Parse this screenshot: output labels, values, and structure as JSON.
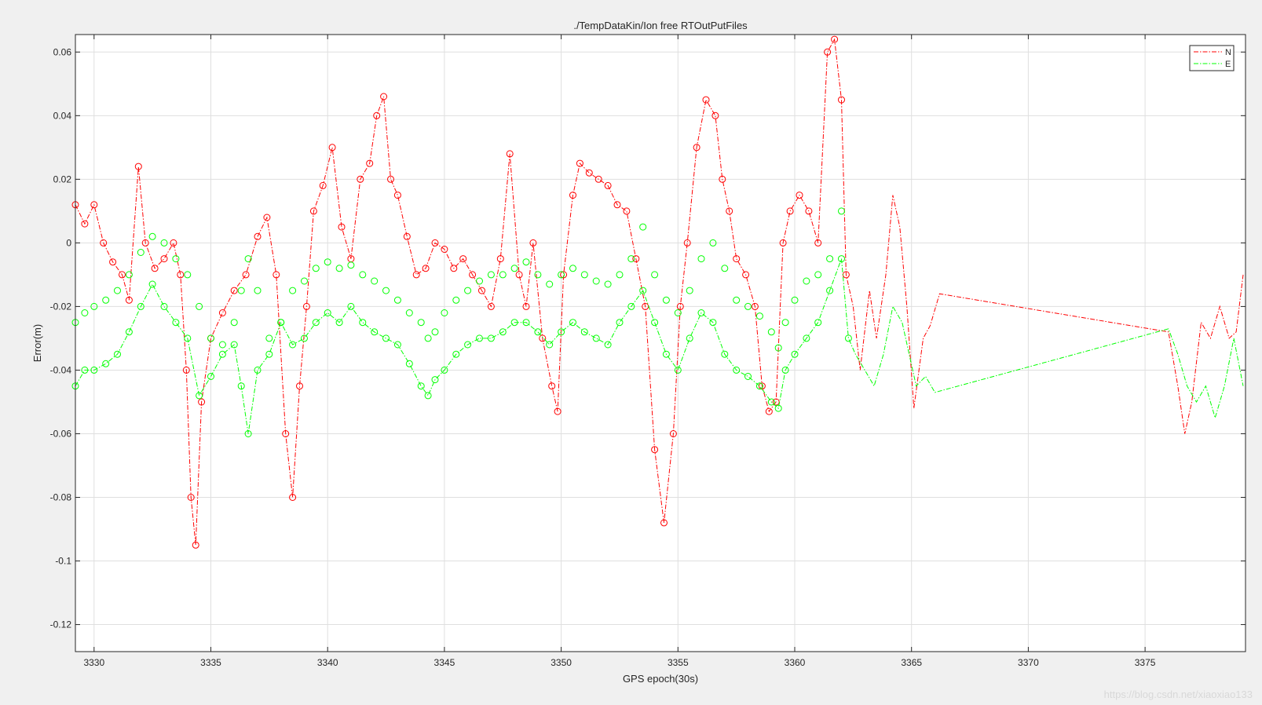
{
  "watermark": "https://blog.csdn.net/xiaoxiao133",
  "chart_data": {
    "type": "line",
    "title": "./TempDataKin/Ion free RTOutPutFiles",
    "xlabel": "GPS epoch(30s)",
    "ylabel": "Error(m)",
    "xlim": [
      3329.2,
      3379.3
    ],
    "ylim": [
      -0.1285,
      0.0655
    ],
    "xticks": [
      3330,
      3335,
      3340,
      3345,
      3350,
      3355,
      3360,
      3365,
      3370,
      3375
    ],
    "yticks": [
      0.06,
      0.04,
      0.02,
      0,
      -0.02,
      -0.04,
      -0.06,
      -0.08,
      -0.1,
      -0.12
    ],
    "ytick_labels": [
      "0.06",
      "0.04",
      "0.02",
      "0",
      "-0.02",
      "-0.04",
      "-0.06",
      "-0.08",
      "-0.1",
      "-0.12"
    ],
    "grid": true,
    "legend_position": "top-right",
    "colors": {
      "N": "#ff0000",
      "E": "#00ff00"
    },
    "series": [
      {
        "name": "N",
        "line_style": "dash-dot",
        "marker": "circle",
        "marker_until_x": 3362.3,
        "x": [
          3329.2,
          3329.6,
          3330.0,
          3330.4,
          3330.8,
          3331.2,
          3331.5,
          3331.9,
          3332.2,
          3332.6,
          3333.0,
          3333.4,
          3333.7,
          3333.95,
          3334.15,
          3334.35,
          3334.6,
          3335.0,
          3335.5,
          3336.0,
          3336.5,
          3337.0,
          3337.4,
          3337.8,
          3338.2,
          3338.5,
          3338.8,
          3339.1,
          3339.4,
          3339.8,
          3340.2,
          3340.6,
          3341.0,
          3341.4,
          3341.8,
          3342.1,
          3342.4,
          3342.7,
          3343.0,
          3343.4,
          3343.8,
          3344.2,
          3344.6,
          3345.0,
          3345.4,
          3345.8,
          3346.2,
          3346.6,
          3347.0,
          3347.4,
          3347.8,
          3348.2,
          3348.5,
          3348.8,
          3349.2,
          3349.6,
          3349.85,
          3350.1,
          3350.5,
          3350.8,
          3351.2,
          3351.6,
          3352.0,
          3352.4,
          3352.8,
          3353.2,
          3353.6,
          3354.0,
          3354.4,
          3354.8,
          3355.1,
          3355.4,
          3355.8,
          3356.2,
          3356.6,
          3356.9,
          3357.2,
          3357.5,
          3357.9,
          3358.3,
          3358.6,
          3358.9,
          3359.2,
          3359.5,
          3359.8,
          3360.2,
          3360.6,
          3361.0,
          3361.4,
          3361.7,
          3362.0,
          3362.2,
          3362.5,
          3362.8,
          3363.2,
          3363.5,
          3363.9,
          3364.2,
          3364.5,
          3364.8,
          3365.1,
          3365.5,
          3365.8,
          3366.2,
          3376.0,
          3376.4,
          3376.7,
          3377.0,
          3377.4,
          3377.8,
          3378.2,
          3378.6,
          3378.9,
          3379.2
        ],
        "y": [
          0.012,
          0.006,
          0.012,
          0.0,
          -0.006,
          -0.01,
          -0.018,
          0.024,
          0.0,
          -0.008,
          -0.005,
          0.0,
          -0.01,
          -0.04,
          -0.08,
          -0.095,
          -0.05,
          -0.03,
          -0.022,
          -0.015,
          -0.01,
          0.002,
          0.008,
          -0.01,
          -0.06,
          -0.08,
          -0.045,
          -0.02,
          0.01,
          0.018,
          0.03,
          0.005,
          -0.005,
          0.02,
          0.025,
          0.04,
          0.046,
          0.02,
          0.015,
          0.002,
          -0.01,
          -0.008,
          0.0,
          -0.002,
          -0.008,
          -0.005,
          -0.01,
          -0.015,
          -0.02,
          -0.005,
          0.028,
          -0.01,
          -0.02,
          0.0,
          -0.03,
          -0.045,
          -0.053,
          -0.01,
          0.015,
          0.025,
          0.022,
          0.02,
          0.018,
          0.012,
          0.01,
          -0.005,
          -0.02,
          -0.065,
          -0.088,
          -0.06,
          -0.02,
          0.0,
          0.03,
          0.045,
          0.04,
          0.02,
          0.01,
          -0.005,
          -0.01,
          -0.02,
          -0.045,
          -0.053,
          -0.05,
          0.0,
          0.01,
          0.015,
          0.01,
          0.0,
          0.06,
          0.064,
          0.045,
          -0.01,
          -0.02,
          -0.04,
          -0.015,
          -0.03,
          -0.01,
          0.015,
          0.005,
          -0.02,
          -0.052,
          -0.03,
          -0.026,
          -0.016,
          -0.028,
          -0.045,
          -0.06,
          -0.05,
          -0.025,
          -0.03,
          -0.02,
          -0.03,
          -0.028,
          -0.01
        ]
      },
      {
        "name": "E",
        "line_style": "dash-dot",
        "marker": "circle",
        "marker_until_x": 3362.3,
        "x": [
          3329.2,
          3329.6,
          3330.0,
          3330.5,
          3331.0,
          3331.5,
          3332.0,
          3332.5,
          3333.0,
          3333.5,
          3334.0,
          3334.5,
          3335.0,
          3335.5,
          3336.0,
          3336.3,
          3336.6,
          3337.0,
          3337.5,
          3338.0,
          3338.5,
          3339.0,
          3339.5,
          3340.0,
          3340.5,
          3341.0,
          3341.5,
          3342.0,
          3342.5,
          3343.0,
          3343.5,
          3344.0,
          3344.3,
          3344.6,
          3345.0,
          3345.5,
          3346.0,
          3346.5,
          3347.0,
          3347.5,
          3348.0,
          3348.5,
          3349.0,
          3349.5,
          3350.0,
          3350.5,
          3351.0,
          3351.5,
          3352.0,
          3352.5,
          3353.0,
          3353.5,
          3354.0,
          3354.5,
          3355.0,
          3355.5,
          3356.0,
          3356.5,
          3357.0,
          3357.5,
          3358.0,
          3358.5,
          3359.0,
          3359.3,
          3359.6,
          3360.0,
          3360.5,
          3361.0,
          3361.5,
          3362.0,
          3362.3,
          3362.6,
          3363.0,
          3363.4,
          3363.8,
          3364.2,
          3364.6,
          3364.9,
          3365.2,
          3365.6,
          3366.0,
          3376.0,
          3376.4,
          3376.8,
          3377.2,
          3377.6,
          3378.0,
          3378.4,
          3378.8,
          3379.2
        ],
        "y": [
          -0.045,
          -0.04,
          -0.04,
          -0.038,
          -0.035,
          -0.028,
          -0.02,
          -0.013,
          -0.02,
          -0.025,
          -0.03,
          -0.048,
          -0.042,
          -0.035,
          -0.032,
          -0.045,
          -0.06,
          -0.04,
          -0.035,
          -0.025,
          -0.032,
          -0.03,
          -0.025,
          -0.022,
          -0.025,
          -0.02,
          -0.025,
          -0.028,
          -0.03,
          -0.032,
          -0.038,
          -0.045,
          -0.048,
          -0.043,
          -0.04,
          -0.035,
          -0.032,
          -0.03,
          -0.03,
          -0.028,
          -0.025,
          -0.025,
          -0.028,
          -0.032,
          -0.028,
          -0.025,
          -0.028,
          -0.03,
          -0.032,
          -0.025,
          -0.02,
          -0.015,
          -0.025,
          -0.035,
          -0.04,
          -0.03,
          -0.022,
          -0.025,
          -0.035,
          -0.04,
          -0.042,
          -0.045,
          -0.05,
          -0.052,
          -0.04,
          -0.035,
          -0.03,
          -0.025,
          -0.015,
          -0.005,
          -0.03,
          -0.035,
          -0.04,
          -0.045,
          -0.035,
          -0.02,
          -0.025,
          -0.035,
          -0.045,
          -0.042,
          -0.047,
          -0.027,
          -0.035,
          -0.045,
          -0.05,
          -0.045,
          -0.055,
          -0.045,
          -0.03,
          -0.045
        ]
      },
      {
        "name": "E markers",
        "legend": false,
        "marker": "circle",
        "x": [
          3329.2,
          3329.6,
          3330.0,
          3330.5,
          3331.0,
          3331.5,
          3332.0,
          3332.5,
          3333.0,
          3333.5,
          3334.0,
          3334.5,
          3335.0,
          3335.5,
          3336.0,
          3336.3,
          3336.6,
          3337.0,
          3337.5,
          3338.0,
          3338.5,
          3339.0,
          3339.5,
          3340.0,
          3340.5,
          3341.0,
          3341.5,
          3342.0,
          3342.5,
          3343.0,
          3343.5,
          3344.0,
          3344.3,
          3344.6,
          3345.0,
          3345.5,
          3346.0,
          3346.5,
          3347.0,
          3347.5,
          3348.0,
          3348.5,
          3349.0,
          3349.5,
          3350.0,
          3350.5,
          3351.0,
          3351.5,
          3352.0,
          3352.5,
          3353.0,
          3353.5,
          3354.0,
          3354.5,
          3355.0,
          3355.5,
          3356.0,
          3356.5,
          3357.0,
          3357.5,
          3358.0,
          3358.5,
          3359.0,
          3359.3,
          3359.6,
          3360.0,
          3360.5,
          3361.0,
          3361.5,
          3362.0
        ],
        "y": [
          -0.025,
          -0.022,
          -0.02,
          -0.018,
          -0.015,
          -0.01,
          -0.003,
          0.002,
          0.0,
          -0.005,
          -0.01,
          -0.02,
          -0.03,
          -0.032,
          -0.025,
          -0.015,
          -0.005,
          -0.015,
          -0.03,
          -0.025,
          -0.015,
          -0.012,
          -0.008,
          -0.006,
          -0.008,
          -0.007,
          -0.01,
          -0.012,
          -0.015,
          -0.018,
          -0.022,
          -0.025,
          -0.03,
          -0.028,
          -0.022,
          -0.018,
          -0.015,
          -0.012,
          -0.01,
          -0.01,
          -0.008,
          -0.006,
          -0.01,
          -0.013,
          -0.01,
          -0.008,
          -0.01,
          -0.012,
          -0.013,
          -0.01,
          -0.005,
          0.005,
          -0.01,
          -0.018,
          -0.022,
          -0.015,
          -0.005,
          0.0,
          -0.008,
          -0.018,
          -0.02,
          -0.023,
          -0.028,
          -0.033,
          -0.025,
          -0.018,
          -0.012,
          -0.01,
          -0.005,
          0.01
        ]
      }
    ]
  }
}
